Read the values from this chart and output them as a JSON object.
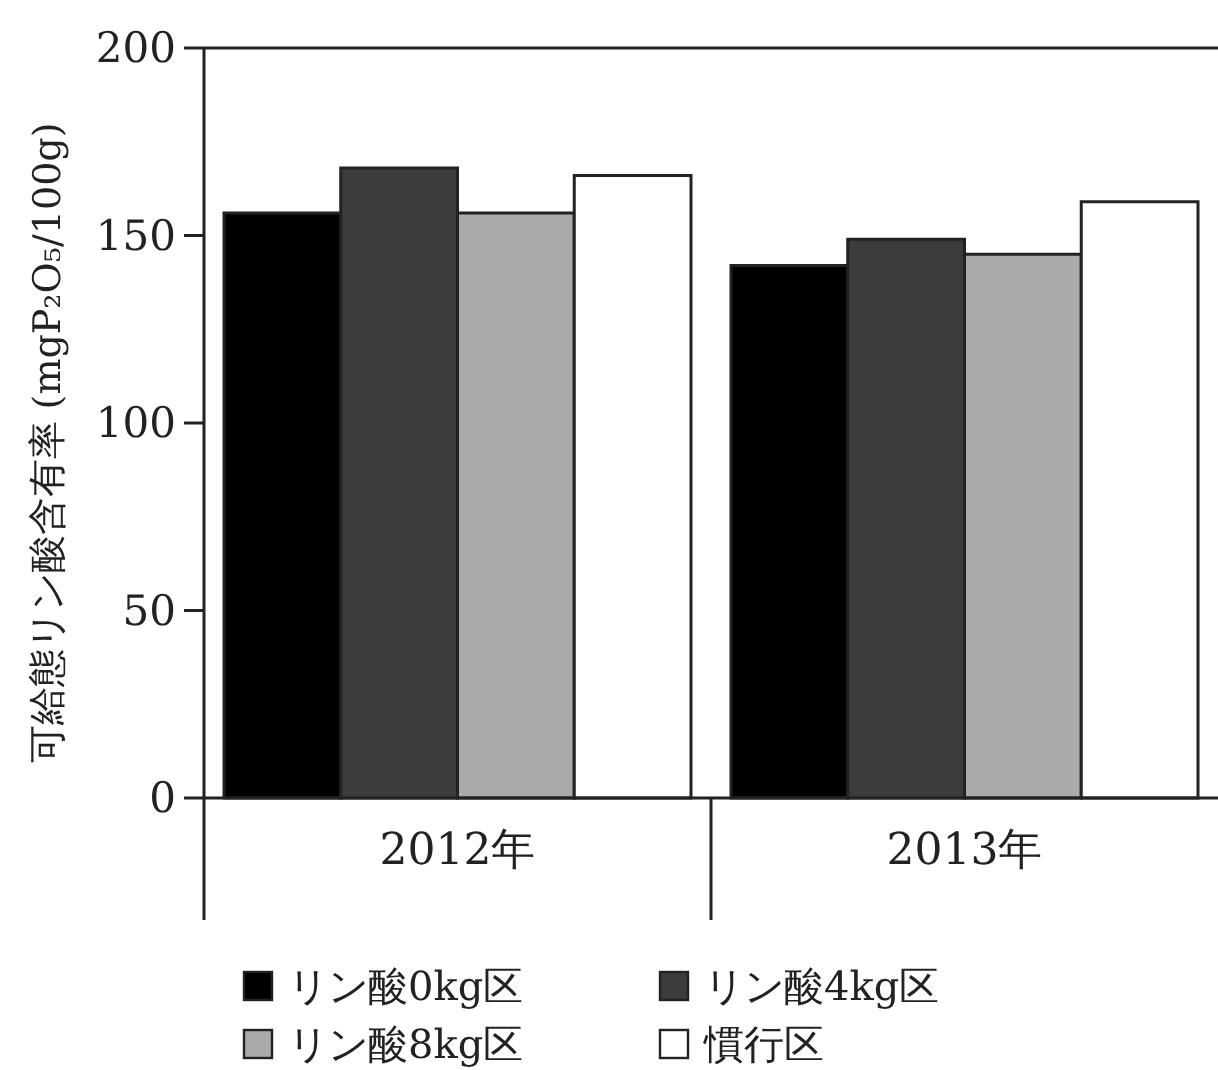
{
  "chart_data": {
    "type": "bar",
    "ylabel": "可給態リン酸含有率 (mgP₂O₅/100g)",
    "categories": [
      "2012年",
      "2013年"
    ],
    "series": [
      {
        "name": "リン酸0kg区",
        "color": "#000000",
        "values": [
          156,
          142
        ]
      },
      {
        "name": "リン酸4kg区",
        "color": "#3c3c3c",
        "values": [
          168,
          149
        ]
      },
      {
        "name": "リン酸8kg区",
        "color": "#aaaaaa",
        "values": [
          156,
          145
        ]
      },
      {
        "name": "慣行区",
        "color": "#ffffff",
        "values": [
          166,
          159
        ]
      }
    ],
    "ylim": [
      0,
      200
    ],
    "yticks": [
      0,
      50,
      100,
      150,
      200
    ],
    "grid": false,
    "legend": "bottom"
  }
}
